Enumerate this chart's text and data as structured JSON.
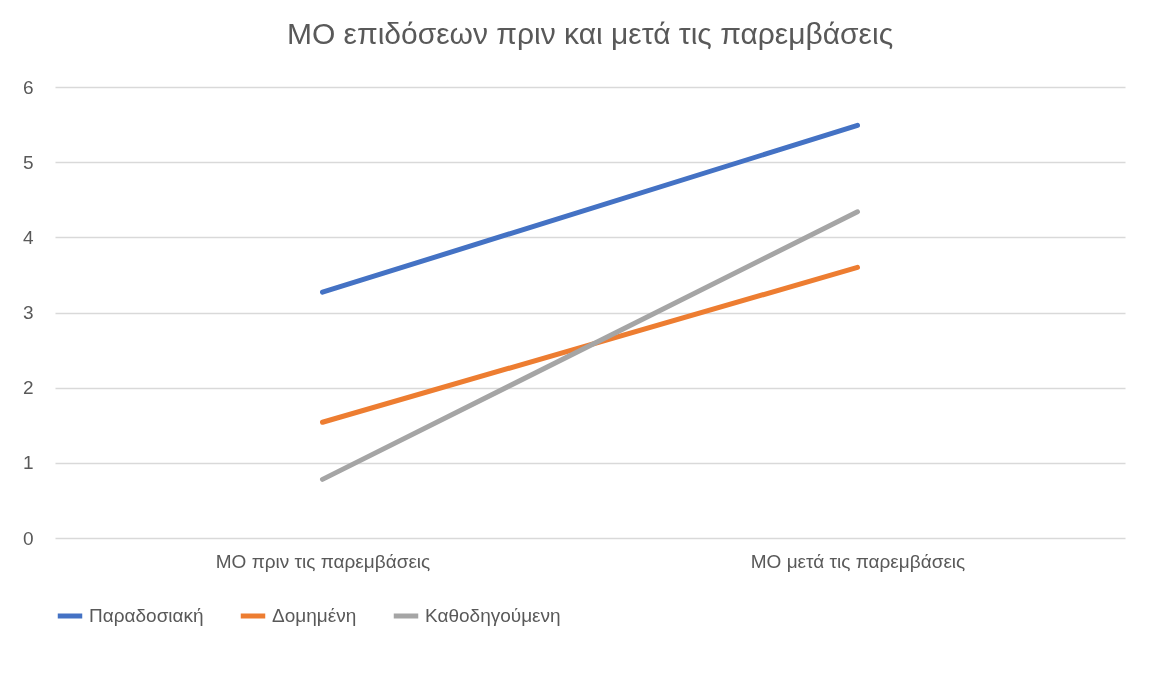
{
  "chart_data": {
    "type": "line",
    "title": "ΜΟ επιδόσεων πριν και μετά τις παρεμβάσεις",
    "categories": [
      "ΜΟ πριν τις παρεμβάσεις",
      "ΜΟ μετά τις παρεμβάσεις"
    ],
    "series": [
      {
        "name": "Παραδοσιακή",
        "color": "#4472c4",
        "values": [
          3.27,
          5.49
        ]
      },
      {
        "name": "Δομημένη",
        "color": "#ed7d31",
        "values": [
          1.54,
          3.6
        ]
      },
      {
        "name": "Καθοδηγούμενη",
        "color": "#a5a5a5",
        "values": [
          0.78,
          4.34
        ]
      }
    ],
    "ylim": [
      0,
      6
    ],
    "yticks": [
      0,
      1,
      2,
      3,
      4,
      5,
      6
    ],
    "grid": "y",
    "legend": "bottom",
    "marker": "none",
    "line_style": "solid"
  }
}
